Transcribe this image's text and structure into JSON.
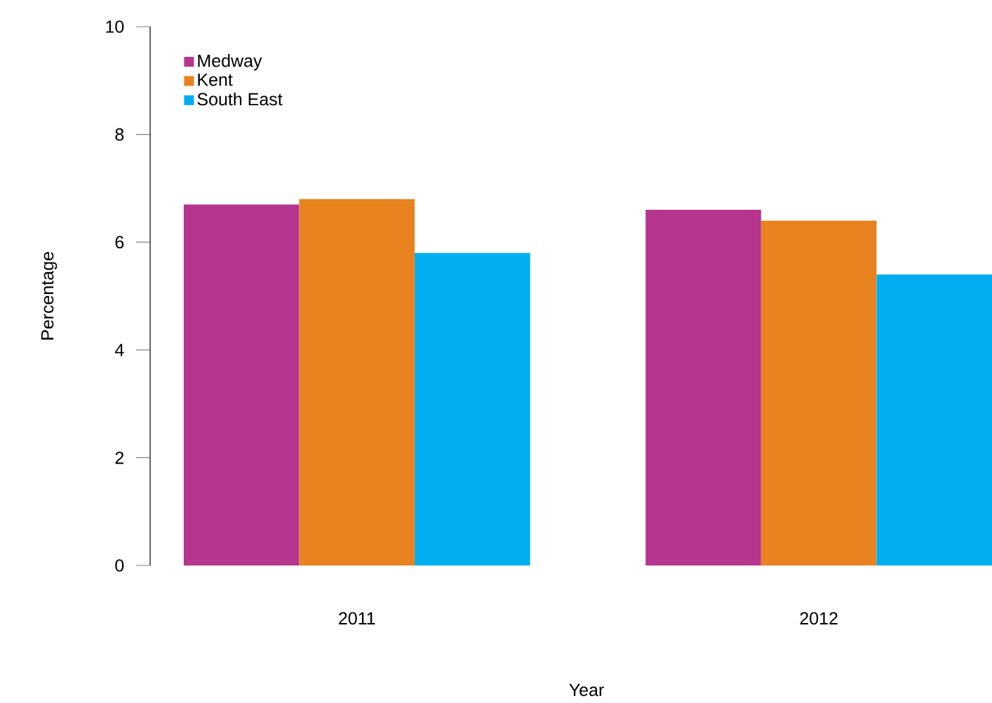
{
  "chart_data": {
    "type": "bar",
    "xlabel": "Year",
    "ylabel": "Percentage",
    "categories": [
      "2011",
      "2012"
    ],
    "series": [
      {
        "name": "Medway",
        "color": "#b5358f",
        "values": [
          6.7,
          6.6
        ]
      },
      {
        "name": "Kent",
        "color": "#e8821e",
        "values": [
          6.8,
          6.4
        ]
      },
      {
        "name": "South East",
        "color": "#00aeef",
        "values": [
          5.8,
          5.4
        ]
      }
    ],
    "ylim": [
      0,
      10
    ],
    "yticks": [
      0,
      2,
      4,
      6,
      8,
      10
    ],
    "grid": false,
    "legend": "top left"
  }
}
